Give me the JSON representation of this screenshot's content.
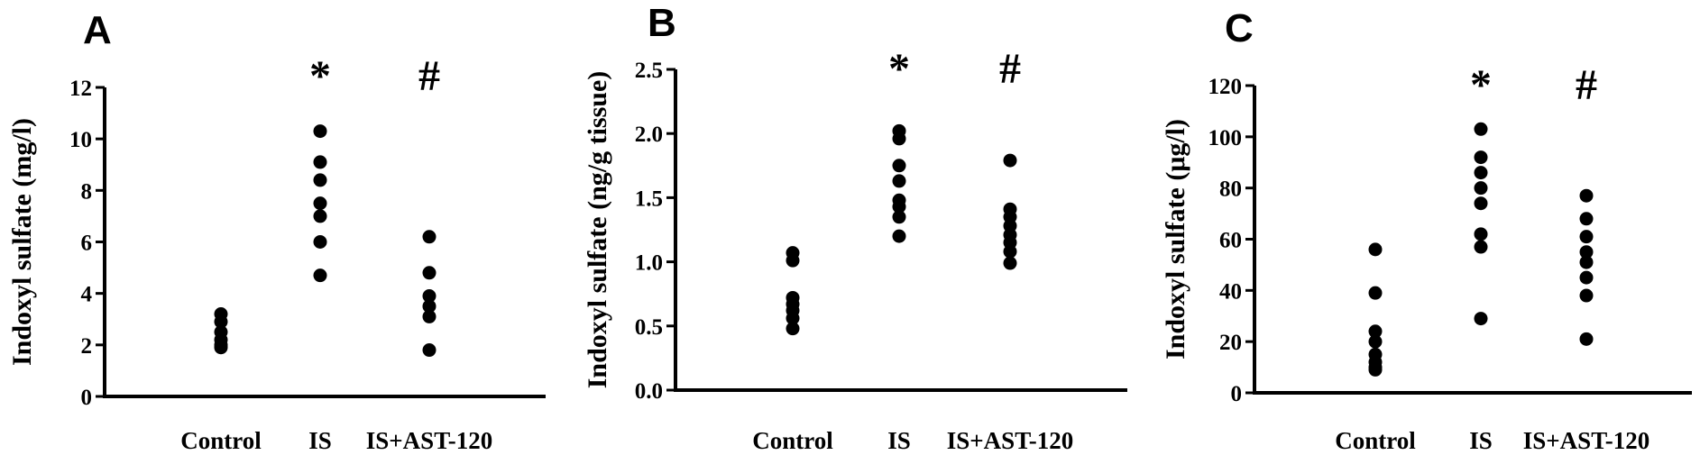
{
  "chart_data": [
    {
      "type": "scatter",
      "panel": "A",
      "ylabel": "Indoxyl sulfate (mg/l)",
      "xlabel": "",
      "categories": [
        "Control",
        "IS",
        "IS+AST-120"
      ],
      "ylim": [
        0,
        12
      ],
      "yticks": [
        "0",
        "2",
        "4",
        "6",
        "8",
        "10",
        "12"
      ],
      "grid": false,
      "annotations": [
        "",
        "*",
        "#"
      ],
      "series": [
        {
          "values": [
            3.2,
            2.9,
            2.5,
            2.2,
            2.0,
            1.9
          ]
        },
        {
          "values": [
            10.3,
            9.1,
            8.4,
            7.5,
            7.0,
            6.0,
            4.7
          ]
        },
        {
          "values": [
            6.2,
            4.8,
            3.9,
            3.5,
            3.1,
            1.8
          ]
        }
      ]
    },
    {
      "type": "scatter",
      "panel": "B",
      "ylabel": "Indoxyl sulfate (ng/g tissue)",
      "xlabel": "",
      "categories": [
        "Control",
        "IS",
        "IS+AST-120"
      ],
      "ylim": [
        0,
        2.5
      ],
      "yticks": [
        "0.0",
        "0.5",
        "1.0",
        "1.5",
        "2.0",
        "2.5"
      ],
      "grid": false,
      "annotations": [
        "",
        "*",
        "#"
      ],
      "series": [
        {
          "values": [
            1.07,
            1.01,
            0.72,
            0.67,
            0.62,
            0.56,
            0.48
          ]
        },
        {
          "values": [
            2.02,
            1.96,
            1.75,
            1.63,
            1.48,
            1.43,
            1.35,
            1.2
          ]
        },
        {
          "values": [
            1.79,
            1.41,
            1.35,
            1.28,
            1.21,
            1.15,
            1.08,
            0.99
          ]
        }
      ]
    },
    {
      "type": "scatter",
      "panel": "C",
      "ylabel": "Indoxyl sulfate (μg/l)",
      "xlabel": "",
      "categories": [
        "Control",
        "IS",
        "IS+AST-120"
      ],
      "ylim": [
        0,
        120
      ],
      "yticks": [
        "0",
        "20",
        "40",
        "60",
        "80",
        "100",
        "120"
      ],
      "grid": false,
      "annotations": [
        "",
        "*",
        "#"
      ],
      "series": [
        {
          "values": [
            56,
            39,
            24,
            20,
            15,
            12,
            10,
            9
          ]
        },
        {
          "values": [
            103,
            92,
            86,
            80,
            74,
            62,
            57,
            29
          ]
        },
        {
          "values": [
            77,
            68,
            61,
            55,
            51,
            45,
            38,
            21
          ]
        }
      ]
    }
  ]
}
